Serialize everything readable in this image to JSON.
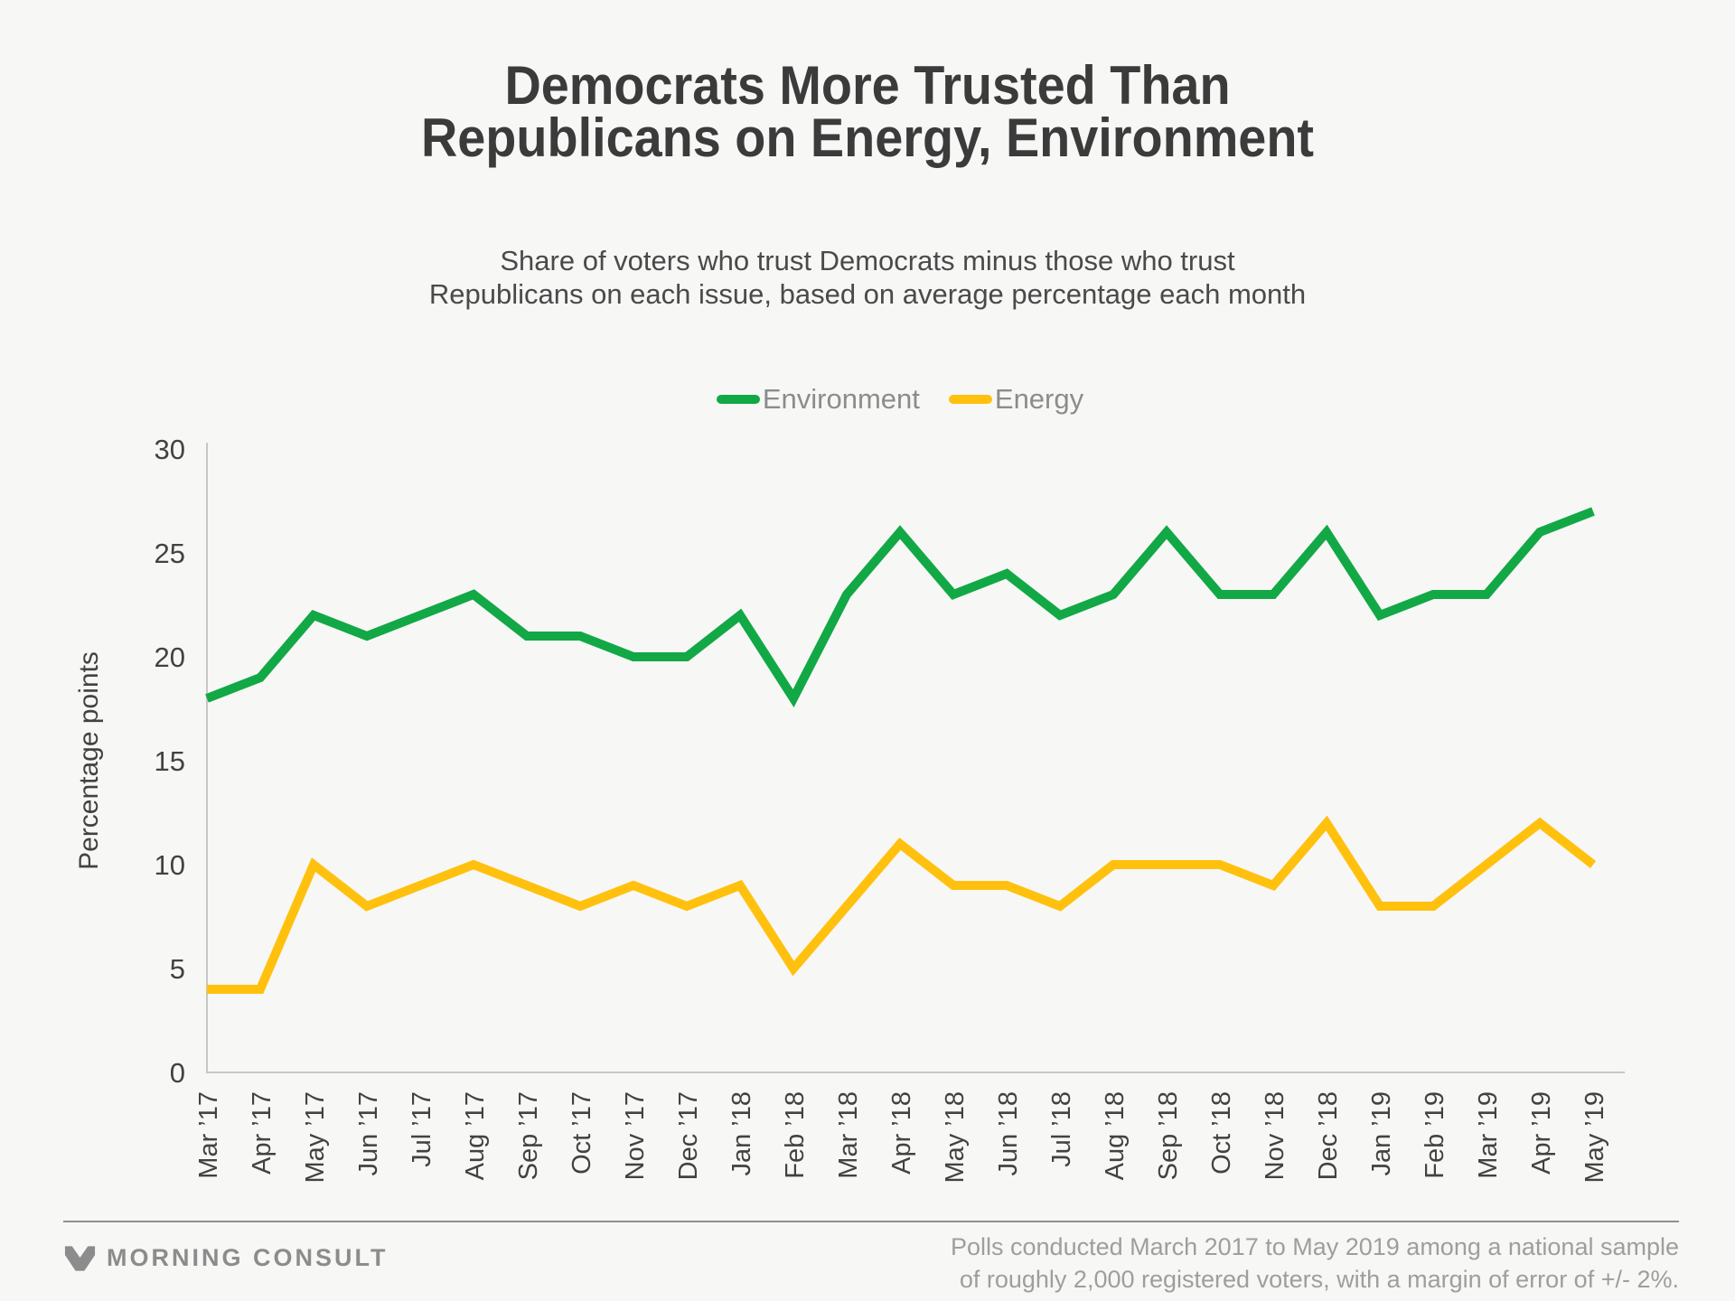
{
  "header": {
    "title_lines": [
      "Democrats More Trusted Than",
      "Republicans on Energy, Environment"
    ],
    "subtitle_lines": [
      "Share of voters who trust Democrats minus those who trust",
      "Republicans on each issue, based on average percentage each month"
    ]
  },
  "legend": [
    {
      "label": "Environment",
      "color": "#12A846"
    },
    {
      "label": "Energy",
      "color": "#FFC10E"
    }
  ],
  "chart_data": {
    "type": "line",
    "x": [
      "Mar ’17",
      "Apr ’17",
      "May ’17",
      "Jun ’17",
      "Jul ’17",
      "Aug ’17",
      "Sep ’17",
      "Oct ’17",
      "Nov ’17",
      "Dec ’17",
      "Jan ’18",
      "Feb ’18",
      "Mar ’18",
      "Apr ’18",
      "May ’18",
      "Jun ’18",
      "Jul ’18",
      "Aug ’18",
      "Sep ’18",
      "Oct ’18",
      "Nov ’18",
      "Dec ’18",
      "Jan ’19",
      "Feb ’19",
      "Mar ’19",
      "Apr ’19",
      "May ’19"
    ],
    "series": [
      {
        "name": "Environment",
        "color": "#12A846",
        "values": [
          18,
          19,
          22,
          21,
          22,
          23,
          21,
          21,
          20,
          20,
          22,
          18,
          23,
          26,
          23,
          24,
          22,
          23,
          26,
          23,
          23,
          26,
          22,
          23,
          23,
          26,
          27
        ]
      },
      {
        "name": "Energy",
        "color": "#FFC10E",
        "values": [
          4,
          4,
          10,
          8,
          9,
          10,
          9,
          8,
          9,
          8,
          9,
          5,
          8,
          11,
          9,
          9,
          8,
          10,
          10,
          10,
          9,
          12,
          8,
          8,
          10,
          12,
          10
        ]
      }
    ],
    "title": "Democrats More Trusted Than Republicans on Energy, Environment",
    "xlabel": "",
    "ylabel": "Percentage points",
    "yticks": [
      0,
      5,
      10,
      15,
      20,
      25,
      30
    ],
    "ylim": [
      0,
      30
    ],
    "grid": false,
    "legend_position": "top-center"
  },
  "footer": {
    "brand": "MORNING CONSULT",
    "note_lines": [
      "Polls conducted March 2017 to May 2019 among a national sample",
      "of roughly 2,000 registered voters, with a margin of error of +/- 2%."
    ]
  }
}
